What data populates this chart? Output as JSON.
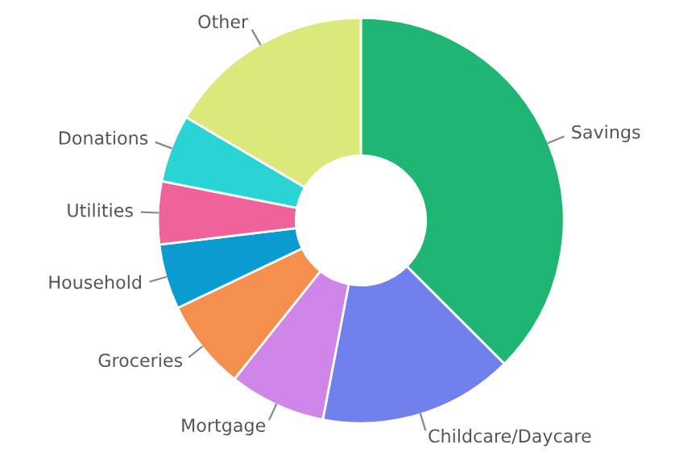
{
  "chart_data": {
    "type": "donut",
    "categories": [
      "Savings",
      "Childcare/Daycare",
      "Mortgage",
      "Groceries",
      "Household",
      "Utilities",
      "Donations",
      "Other"
    ],
    "values": [
      37.5,
      15.5,
      7.7,
      7.2,
      5.2,
      5.0,
      5.4,
      16.5
    ],
    "colors": [
      "#1fb573",
      "#7080ec",
      "#d086e8",
      "#f58f4e",
      "#0a9bd0",
      "#f0639a",
      "#2ad4d4",
      "#dbe97a"
    ],
    "legend": false
  }
}
